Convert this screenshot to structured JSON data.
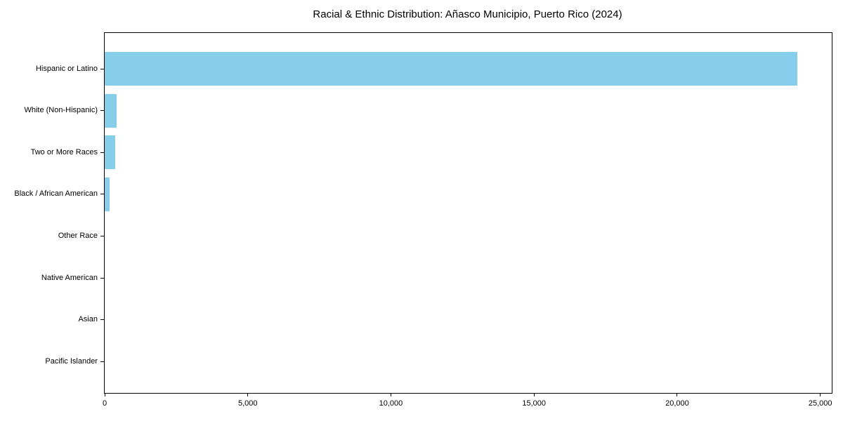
{
  "chart_data": {
    "type": "bar",
    "orientation": "horizontal",
    "title": "Racial & Ethnic Distribution: Añasco Municipio, Puerto Rico (2024)",
    "categories": [
      "Hispanic or Latino",
      "White (Non-Hispanic)",
      "Two or More Races",
      "Black / African American",
      "Other Race",
      "Native American",
      "Asian",
      "Pacific Islander"
    ],
    "values": [
      24200,
      425,
      360,
      170,
      0,
      0,
      0,
      0
    ],
    "xlabel": "",
    "ylabel": "",
    "xlim": [
      0,
      25400
    ],
    "x_tick_values": [
      0,
      5000,
      10000,
      15000,
      20000,
      25000
    ],
    "x_tick_labels": [
      "0",
      "5,000",
      "10,000",
      "15,000",
      "20,000",
      "25,000"
    ],
    "grid": false,
    "legend": false
  },
  "colors": {
    "bar": "#87CEEB",
    "axis": "#000000",
    "text": "#000000",
    "background": "#ffffff"
  }
}
